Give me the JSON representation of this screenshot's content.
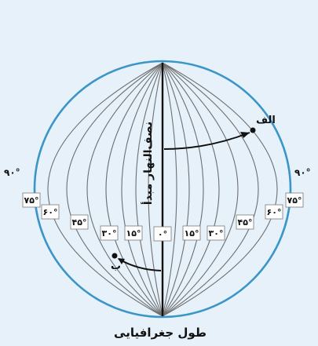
{
  "diagram": {
    "caption": "طول جغرافیایی",
    "prime_meridian_label": "نصف‌النهار مبدأ",
    "point_a_label": "الف",
    "point_b_label": "ب",
    "left_edge_label": "۹۰°",
    "right_edge_label": "۹۰°",
    "scale_labels": [
      "۷۵°",
      "۶۰°",
      "۴۵°",
      "۳۰°",
      "۱۵°",
      "۰°",
      "۱۵°",
      "۳۰°",
      "۴۵°",
      "۶۰°",
      "۷۵°"
    ],
    "colors": {
      "background": "#e6f1fa",
      "globe_outline": "#3c95c8",
      "meridian": "#6f6f6f",
      "prime_meridian": "#111111"
    }
  }
}
